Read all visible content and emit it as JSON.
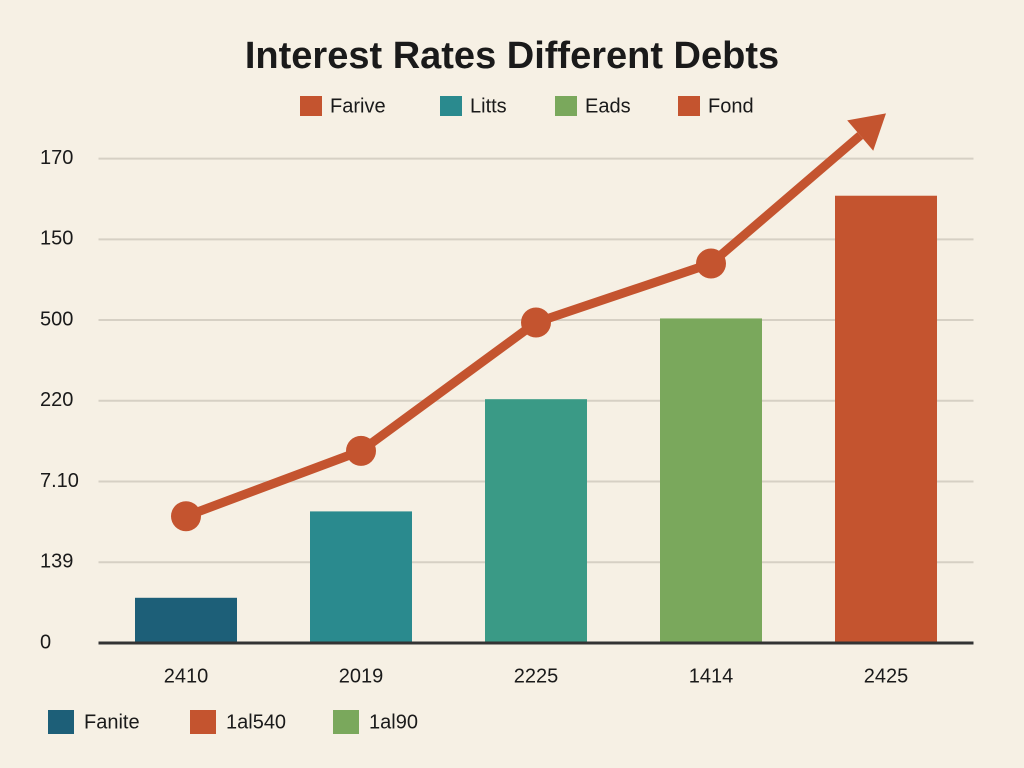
{
  "chart_data": {
    "type": "bar",
    "title": "Interest Rates Different Debts",
    "categories": [
      "2410",
      "2019",
      "2225",
      "1414",
      "2425"
    ],
    "values": [
      0.56,
      1.63,
      3.02,
      4.02,
      5.54
    ],
    "colors": [
      "#1d5f78",
      "#2a8a8e",
      "#3a9a86",
      "#7aa85c",
      "#c4542f"
    ],
    "line": {
      "color": "#c4542f",
      "values": [
        1.57,
        2.38,
        3.97,
        4.7,
        6.56
      ]
    },
    "ylim": [
      0,
      6.8
    ],
    "yticks": [
      0,
      {
        "value": 1,
        "label": "139"
      },
      {
        "value": 2,
        "label": "7.10"
      },
      {
        "value": 3,
        "label": "220"
      },
      {
        "value": 4,
        "label": "500"
      },
      {
        "value": 5,
        "label": "150"
      },
      {
        "value": 6,
        "label": "170"
      }
    ],
    "grid": true,
    "legend_top": [
      {
        "name": "Farive",
        "color": "#c4542f"
      },
      {
        "name": "Litts",
        "color": "#2a8a8e"
      },
      {
        "name": "Eads",
        "color": "#7aa85c"
      },
      {
        "name": "Fond",
        "color": "#c4542f"
      }
    ],
    "legend_bottom": [
      {
        "name": "Fanite",
        "color": "#1d5f78"
      },
      {
        "name": "1al540",
        "color": "#c4542f"
      },
      {
        "name": "1al90",
        "color": "#7aa85c"
      }
    ]
  }
}
